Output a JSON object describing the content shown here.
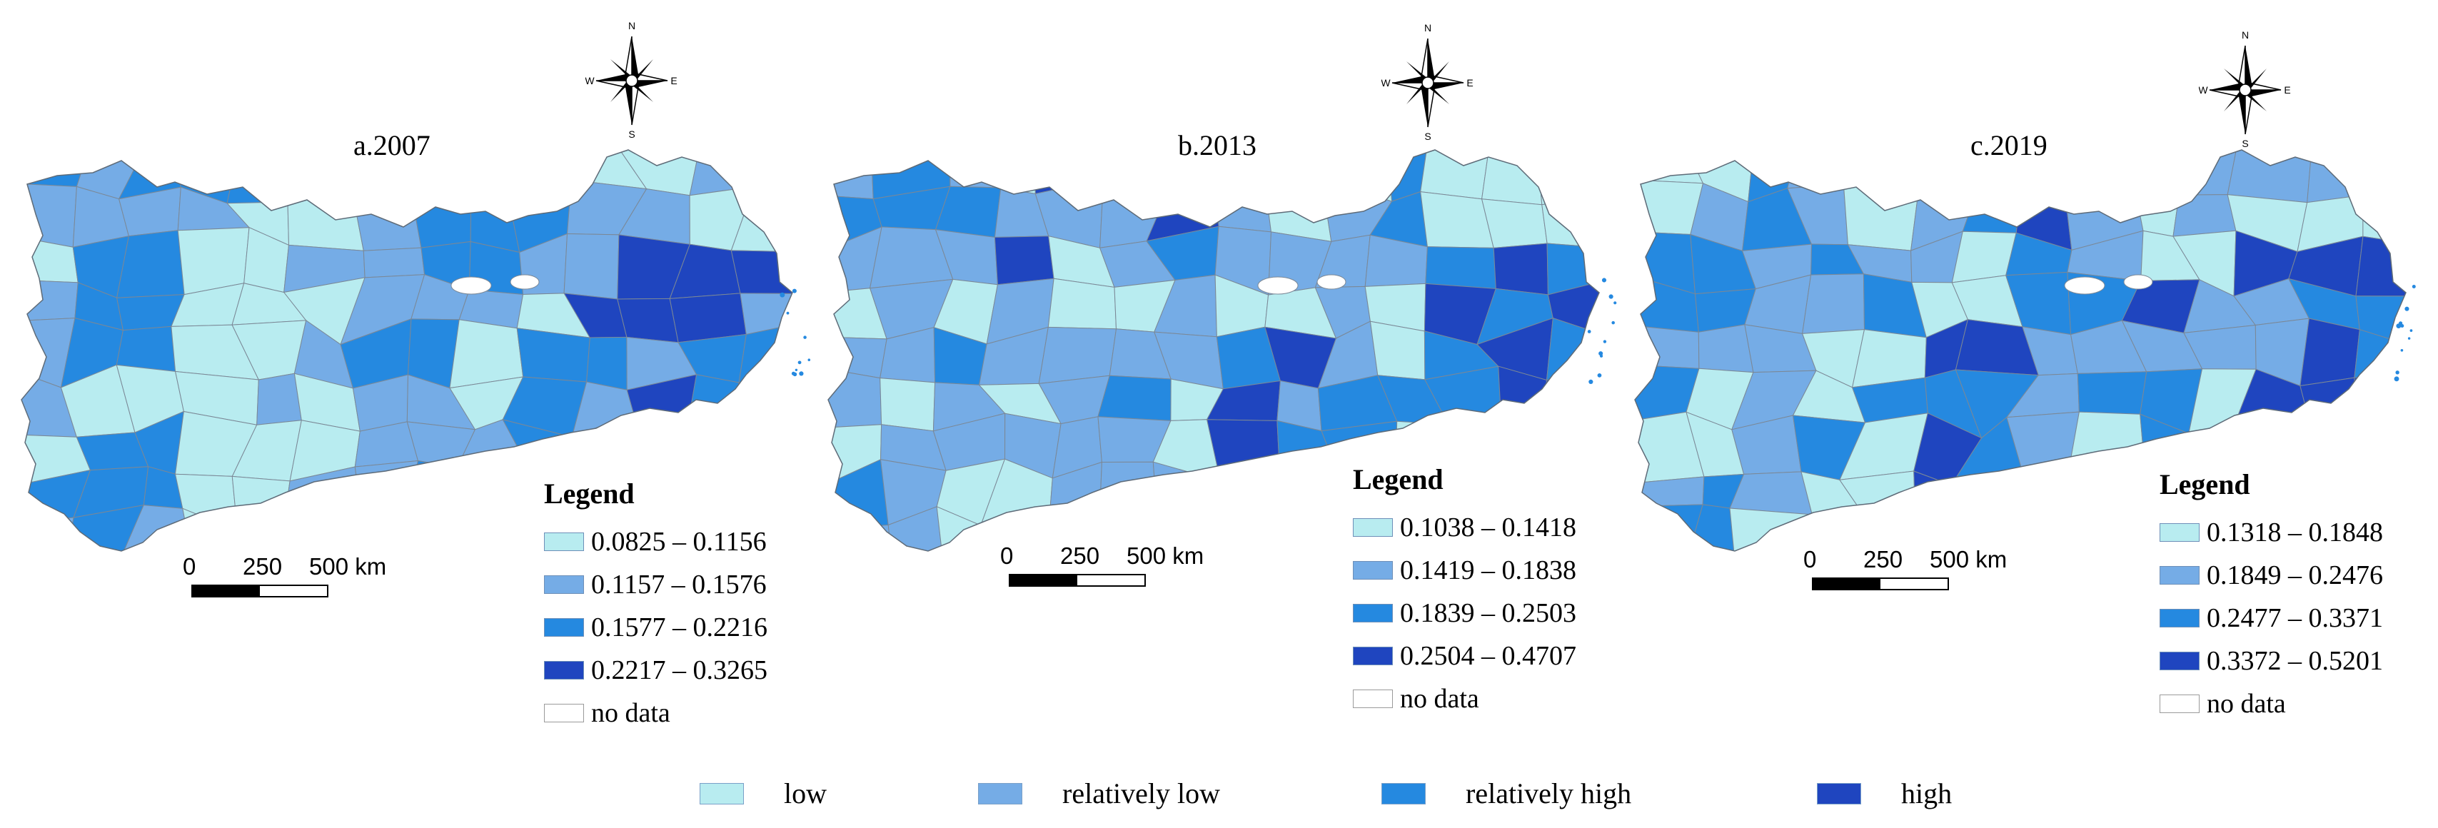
{
  "panels": [
    {
      "title": "a.2007",
      "legend_title": "Legend",
      "classes": [
        "0.0825 – 0.1156",
        "0.1157 – 0.1576",
        "0.1577 – 0.2216",
        "0.2217 – 0.3265"
      ],
      "no_data_label": "no data",
      "scale_labels": [
        "0",
        "250",
        "500 km"
      ]
    },
    {
      "title": "b.2013",
      "legend_title": "Legend",
      "classes": [
        "0.1038 – 0.1418",
        "0.1419 – 0.1838",
        "0.1839 – 0.2503",
        "0.2504 – 0.4707"
      ],
      "no_data_label": "no data",
      "scale_labels": [
        "0",
        "250",
        "500 km"
      ]
    },
    {
      "title": "c.2019",
      "legend_title": "Legend",
      "classes": [
        "0.1318 – 0.1848",
        "0.1849 – 0.2476",
        "0.2477 – 0.3371",
        "0.3372 – 0.5201"
      ],
      "no_data_label": "no data",
      "scale_labels": [
        "0",
        "250",
        "500 km"
      ]
    }
  ],
  "compass_labels": {
    "n": "N",
    "s": "S",
    "e": "E",
    "w": "W"
  },
  "class_colors": [
    "#b8ecf0",
    "#75ace6",
    "#2589e0",
    "#1f45bf"
  ],
  "no_data_color": "#ffffff",
  "bottom_legend": [
    "low",
    "relatively low",
    "relatively high",
    "high"
  ]
}
